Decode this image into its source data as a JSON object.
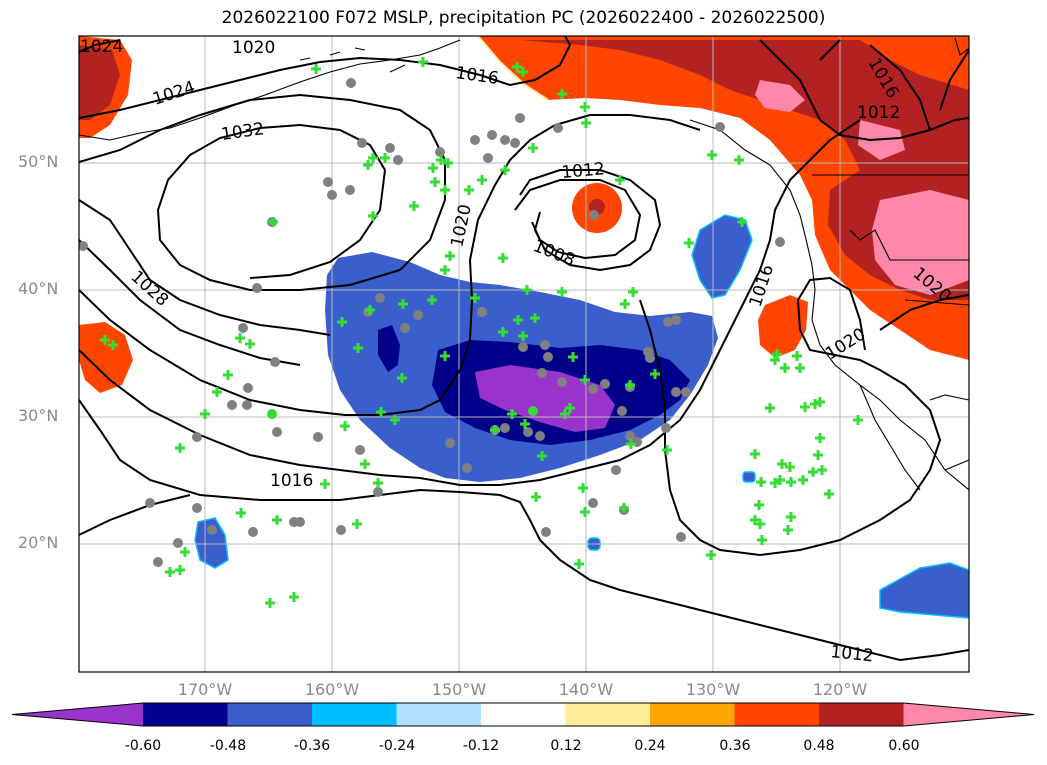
{
  "title": "2026022100 F072 MSLP, precipitation PC (2026022400 - 2026022500)",
  "lat_labels": [
    "50°N",
    "40°N",
    "30°N",
    "20°N"
  ],
  "lon_labels": [
    "170°W",
    "160°W",
    "150°W",
    "140°W",
    "130°W",
    "120°W"
  ],
  "isobar_labels": {
    "a1024": "1024",
    "a1020": "1020",
    "a1016n": "1016",
    "a1024b": "1024",
    "a1032": "1032",
    "a1012": "1012",
    "a1016ne": "1016",
    "a1012ne": "1012",
    "a1020c": "1020",
    "a1008": "1008",
    "a1028": "1028",
    "a1016e": "1016",
    "a1020e": "1020",
    "a1020se": "1020",
    "a1016s": "1016",
    "a1012s": "1012"
  },
  "colorbar": {
    "colors": [
      "#9933cc",
      "#00008b",
      "#3a5fcd",
      "#00bfff",
      "#b0e2ff",
      "#ffffff",
      "#ffee99",
      "#ffa500",
      "#ff4500",
      "#b22222",
      "#ff88aa"
    ],
    "labels": [
      "-0.60",
      "-0.48",
      "-0.36",
      "-0.24",
      "-0.12",
      "0.12",
      "0.24",
      "0.36",
      "0.48",
      "0.60"
    ]
  },
  "palette": {
    "neg3": "#9933cc",
    "neg2": "#00008b",
    "neg1": "#3a5fcd",
    "cyan": "#00bfff",
    "pos1": "#ff4500",
    "pos2": "#b22222",
    "pos3": "#ff88aa",
    "yellow": "#ffee99",
    "marker_fill": "#808080",
    "marker_plus": "#33dd33"
  }
}
